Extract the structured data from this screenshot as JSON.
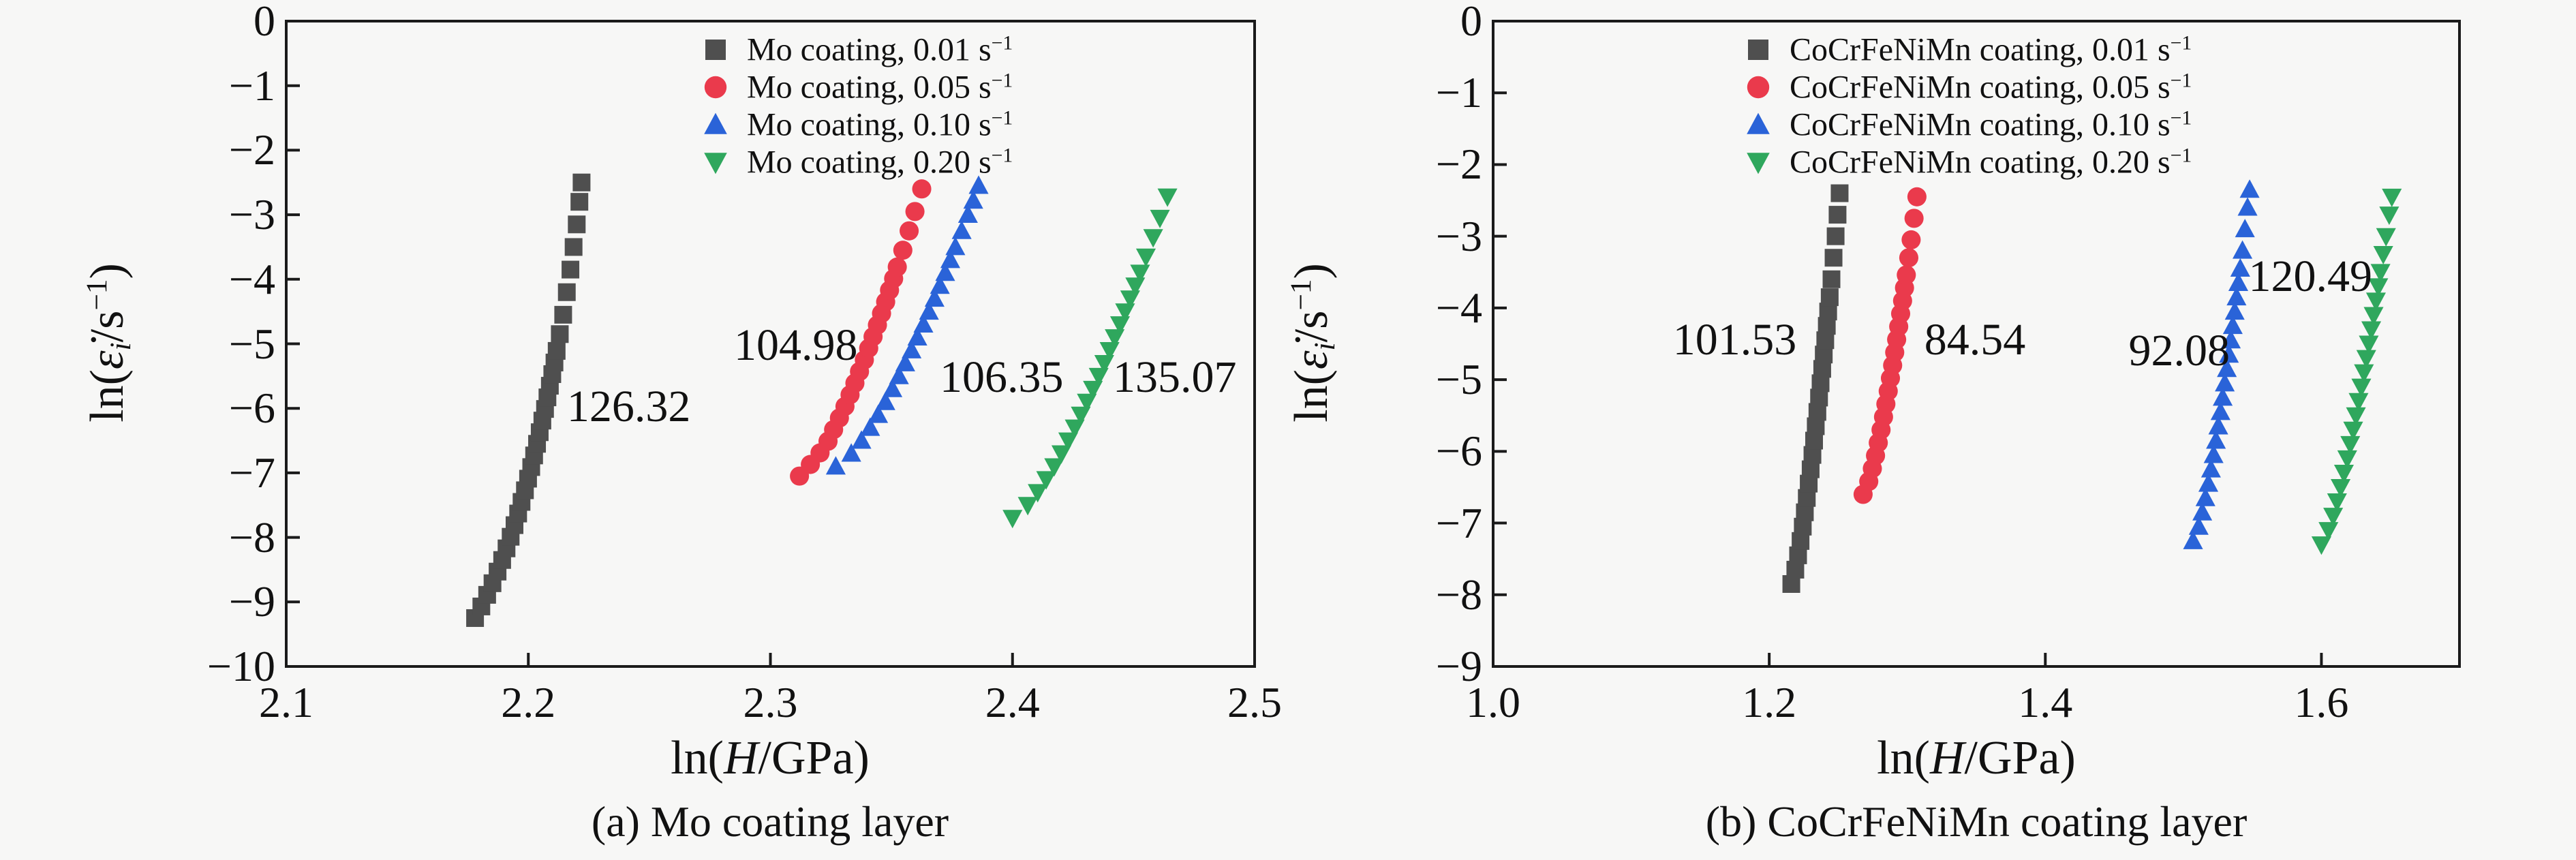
{
  "figure": {
    "background_color": "#f7f7f6",
    "frame_color": "#1a1a1a",
    "text_color": "#111111"
  },
  "chart_data": [
    {
      "id": "a",
      "type": "scatter",
      "caption": "(a) Mo coating layer",
      "xlabel_html": "ln(<i>H</i>/GPa)",
      "ylabel_html": "ln(<i>ε̇</i><sub><i>i</i></sub>/s<sup>−1</sup>)",
      "xlim": [
        2.1,
        2.5
      ],
      "ylim": [
        -10,
        0
      ],
      "grid": false,
      "legend_position": "upper-left-inside",
      "xticks": {
        "values": [
          2.1,
          2.2,
          2.3,
          2.4,
          2.5
        ],
        "labels": [
          "2.1",
          "2.2",
          "2.3",
          "2.4",
          "2.5"
        ]
      },
      "yticks": {
        "values": [
          0,
          -1,
          -2,
          -3,
          -4,
          -5,
          -6,
          -7,
          -8,
          -9,
          -10
        ],
        "labels": [
          "0",
          "−1",
          "−2",
          "−3",
          "−4",
          "−5",
          "−6",
          "−7",
          "−8",
          "−9",
          "−10"
        ]
      },
      "series": [
        {
          "name": "mo-0.01",
          "label_html": "Mo coating, 0.01 s<sup>−1</sup>",
          "marker": "square",
          "color": "#4f4f4f",
          "points": [
            [
              2.178,
              -9.25
            ],
            [
              2.1806,
              -9.07
            ],
            [
              2.183,
              -8.89
            ],
            [
              2.1852,
              -8.71
            ],
            [
              2.1873,
              -8.53
            ],
            [
              2.1892,
              -8.35
            ],
            [
              2.191,
              -8.17
            ],
            [
              2.1927,
              -7.99
            ],
            [
              2.1943,
              -7.81
            ],
            [
              2.1958,
              -7.63
            ],
            [
              2.1972,
              -7.45
            ],
            [
              2.1986,
              -7.27
            ],
            [
              2.1999,
              -7.09
            ],
            [
              2.2012,
              -6.91
            ],
            [
              2.2024,
              -6.73
            ],
            [
              2.2036,
              -6.55
            ],
            [
              2.2047,
              -6.37
            ],
            [
              2.2058,
              -6.19
            ],
            [
              2.2069,
              -6.01
            ],
            [
              2.2079,
              -5.83
            ],
            [
              2.2089,
              -5.65
            ],
            [
              2.2099,
              -5.47
            ],
            [
              2.2108,
              -5.29
            ],
            [
              2.2117,
              -5.11
            ],
            [
              2.213,
              -4.85
            ],
            [
              2.2144,
              -4.55
            ],
            [
              2.2159,
              -4.2
            ],
            [
              2.2174,
              -3.85
            ],
            [
              2.2187,
              -3.5
            ],
            [
              2.22,
              -3.15
            ],
            [
              2.2211,
              -2.8
            ],
            [
              2.222,
              -2.5
            ]
          ]
        },
        {
          "name": "mo-0.05",
          "label_html": "Mo coating, 0.05 s<sup>−1</sup>",
          "marker": "circle",
          "color": "#ea3a4c",
          "points": [
            [
              2.312,
              -7.05
            ],
            [
              2.3165,
              -6.87
            ],
            [
              2.3205,
              -6.69
            ],
            [
              2.3238,
              -6.51
            ],
            [
              2.3261,
              -6.33
            ],
            [
              2.3285,
              -6.15
            ],
            [
              2.3308,
              -5.97
            ],
            [
              2.3329,
              -5.79
            ],
            [
              2.3349,
              -5.61
            ],
            [
              2.3368,
              -5.43
            ],
            [
              2.3388,
              -5.25
            ],
            [
              2.3406,
              -5.07
            ],
            [
              2.3424,
              -4.89
            ],
            [
              2.3442,
              -4.71
            ],
            [
              2.3459,
              -4.53
            ],
            [
              2.3476,
              -4.35
            ],
            [
              2.3492,
              -4.17
            ],
            [
              2.3509,
              -3.99
            ],
            [
              2.3524,
              -3.81
            ],
            [
              2.3547,
              -3.55
            ],
            [
              2.3573,
              -3.25
            ],
            [
              2.3597,
              -2.95
            ],
            [
              2.3625,
              -2.6
            ]
          ]
        },
        {
          "name": "mo-0.10",
          "label_html": "Mo coating, 0.10 s<sup>−1</sup>",
          "marker": "triangle-up",
          "color": "#2a63d8",
          "points": [
            [
              2.327,
              -6.9
            ],
            [
              2.3334,
              -6.7
            ],
            [
              2.3376,
              -6.5
            ],
            [
              2.3412,
              -6.3
            ],
            [
              2.3445,
              -6.1
            ],
            [
              2.3475,
              -5.9
            ],
            [
              2.3504,
              -5.7
            ],
            [
              2.3531,
              -5.5
            ],
            [
              2.3557,
              -5.3
            ],
            [
              2.3583,
              -5.1
            ],
            [
              2.3607,
              -4.9
            ],
            [
              2.3632,
              -4.7
            ],
            [
              2.3655,
              -4.5
            ],
            [
              2.3678,
              -4.3
            ],
            [
              2.37,
              -4.1
            ],
            [
              2.3722,
              -3.9
            ],
            [
              2.3743,
              -3.7
            ],
            [
              2.3764,
              -3.5
            ],
            [
              2.379,
              -3.25
            ],
            [
              2.3816,
              -3.0
            ],
            [
              2.3838,
              -2.78
            ],
            [
              2.386,
              -2.55
            ]
          ]
        },
        {
          "name": "mo-0.20",
          "label_html": "Mo coating, 0.20 s<sup>−1</sup>",
          "marker": "triangle-down",
          "color": "#2fa75d",
          "points": [
            [
              2.4,
              -7.7
            ],
            [
              2.4063,
              -7.5
            ],
            [
              2.4104,
              -7.3
            ],
            [
              2.4139,
              -7.1
            ],
            [
              2.4172,
              -6.9
            ],
            [
              2.4202,
              -6.7
            ],
            [
              2.423,
              -6.5
            ],
            [
              2.4257,
              -6.3
            ],
            [
              2.4282,
              -6.1
            ],
            [
              2.4307,
              -5.9
            ],
            [
              2.4332,
              -5.7
            ],
            [
              2.4356,
              -5.5
            ],
            [
              2.4379,
              -5.3
            ],
            [
              2.4401,
              -5.1
            ],
            [
              2.4422,
              -4.9
            ],
            [
              2.4444,
              -4.7
            ],
            [
              2.4465,
              -4.5
            ],
            [
              2.4486,
              -4.3
            ],
            [
              2.4507,
              -4.1
            ],
            [
              2.4527,
              -3.9
            ],
            [
              2.4551,
              -3.65
            ],
            [
              2.4581,
              -3.35
            ],
            [
              2.4609,
              -3.05
            ],
            [
              2.464,
              -2.72
            ]
          ]
        }
      ],
      "annotations": [
        {
          "text": "126.32",
          "x": 2.2415,
          "y": -5.98
        },
        {
          "text": "104.98",
          "x": 2.3105,
          "y": -5.03
        },
        {
          "text": "106.35",
          "x": 2.3955,
          "y": -5.52
        },
        {
          "text": "135.07",
          "x": 2.467,
          "y": -5.52
        }
      ]
    },
    {
      "id": "b",
      "type": "scatter",
      "caption": "(b) CoCrFeNiMn coating layer",
      "xlabel_html": "ln(<i>H</i>/GPa)",
      "ylabel_html": "ln(<i>ε̇</i><sub><i>i</i></sub>/s<sup>−1</sup>)",
      "xlim": [
        1.0,
        1.7
      ],
      "ylim": [
        -9,
        0
      ],
      "grid": false,
      "legend_position": "upper-right-inside",
      "xticks": {
        "values": [
          1.0,
          1.2,
          1.4,
          1.6
        ],
        "labels": [
          "1.0",
          "1.2",
          "1.4",
          "1.6"
        ]
      },
      "yticks": {
        "values": [
          0,
          -1,
          -2,
          -3,
          -4,
          -5,
          -6,
          -7,
          -8,
          -9
        ],
        "labels": [
          "0",
          "−1",
          "−2",
          "−3",
          "−4",
          "−5",
          "−6",
          "−7",
          "−8",
          "−9"
        ]
      },
      "series": [
        {
          "name": "hea-0.01",
          "label_html": "CoCrFeNiMn coating, 0.01 s<sup>−1</sup>",
          "marker": "square",
          "color": "#4f4f4f",
          "points": [
            [
              1.216,
              -7.85
            ],
            [
              1.2189,
              -7.65
            ],
            [
              1.2209,
              -7.45
            ],
            [
              1.2227,
              -7.25
            ],
            [
              1.2243,
              -7.05
            ],
            [
              1.2258,
              -6.85
            ],
            [
              1.2272,
              -6.65
            ],
            [
              1.2286,
              -6.45
            ],
            [
              1.23,
              -6.25
            ],
            [
              1.2313,
              -6.05
            ],
            [
              1.2325,
              -5.85
            ],
            [
              1.2337,
              -5.65
            ],
            [
              1.2349,
              -5.45
            ],
            [
              1.2361,
              -5.25
            ],
            [
              1.2372,
              -5.05
            ],
            [
              1.2384,
              -4.85
            ],
            [
              1.2395,
              -4.65
            ],
            [
              1.2406,
              -4.45
            ],
            [
              1.2417,
              -4.25
            ],
            [
              1.2427,
              -4.05
            ],
            [
              1.2438,
              -3.85
            ],
            [
              1.2451,
              -3.6
            ],
            [
              1.2466,
              -3.3
            ],
            [
              1.2481,
              -3.0
            ],
            [
              1.2495,
              -2.7
            ],
            [
              1.251,
              -2.4
            ]
          ]
        },
        {
          "name": "hea-0.05",
          "label_html": "CoCrFeNiMn coating, 0.05 s<sup>−1</sup>",
          "marker": "circle",
          "color": "#ea3a4c",
          "points": [
            [
              1.268,
              -6.6
            ],
            [
              1.2721,
              -6.42
            ],
            [
              1.2747,
              -6.24
            ],
            [
              1.277,
              -6.06
            ],
            [
              1.279,
              -5.88
            ],
            [
              1.281,
              -5.7
            ],
            [
              1.2828,
              -5.52
            ],
            [
              1.2845,
              -5.34
            ],
            [
              1.2862,
              -5.16
            ],
            [
              1.2878,
              -4.98
            ],
            [
              1.2894,
              -4.8
            ],
            [
              1.2909,
              -4.62
            ],
            [
              1.2923,
              -4.44
            ],
            [
              1.2938,
              -4.26
            ],
            [
              1.2952,
              -4.08
            ],
            [
              1.2966,
              -3.9
            ],
            [
              1.298,
              -3.72
            ],
            [
              1.2993,
              -3.54
            ],
            [
              1.3011,
              -3.3
            ],
            [
              1.3028,
              -3.05
            ],
            [
              1.3049,
              -2.75
            ],
            [
              1.307,
              -2.45
            ]
          ]
        },
        {
          "name": "hea-0.10",
          "label_html": "CoCrFeNiMn coating, 0.10 s<sup>−1</sup>",
          "marker": "triangle-up",
          "color": "#2a63d8",
          "points": [
            [
              1.507,
              -7.25
            ],
            [
              1.5111,
              -7.05
            ],
            [
              1.5137,
              -6.85
            ],
            [
              1.516,
              -6.65
            ],
            [
              1.5181,
              -6.45
            ],
            [
              1.52,
              -6.25
            ],
            [
              1.5219,
              -6.05
            ],
            [
              1.5236,
              -5.85
            ],
            [
              1.5253,
              -5.65
            ],
            [
              1.5269,
              -5.45
            ],
            [
              1.5285,
              -5.25
            ],
            [
              1.53,
              -5.05
            ],
            [
              1.5315,
              -4.85
            ],
            [
              1.533,
              -4.65
            ],
            [
              1.5344,
              -4.45
            ],
            [
              1.5358,
              -4.25
            ],
            [
              1.5372,
              -4.05
            ],
            [
              1.5385,
              -3.85
            ],
            [
              1.5398,
              -3.65
            ],
            [
              1.5412,
              -3.45
            ],
            [
              1.5428,
              -3.2
            ],
            [
              1.5446,
              -2.9
            ],
            [
              1.5465,
              -2.6
            ],
            [
              1.548,
              -2.35
            ]
          ]
        },
        {
          "name": "hea-0.20",
          "label_html": "CoCrFeNiMn coating, 0.20 s<sup>−1</sup>",
          "marker": "triangle-down",
          "color": "#2fa75d",
          "points": [
            [
              1.6,
              -7.3
            ],
            [
              1.6051,
              -7.1
            ],
            [
              1.6085,
              -6.9
            ],
            [
              1.6113,
              -6.7
            ],
            [
              1.6139,
              -6.5
            ],
            [
              1.6163,
              -6.3
            ],
            [
              1.6187,
              -6.1
            ],
            [
              1.6209,
              -5.9
            ],
            [
              1.623,
              -5.7
            ],
            [
              1.625,
              -5.5
            ],
            [
              1.6269,
              -5.3
            ],
            [
              1.6289,
              -5.1
            ],
            [
              1.6308,
              -4.9
            ],
            [
              1.6325,
              -4.7
            ],
            [
              1.6343,
              -4.5
            ],
            [
              1.6361,
              -4.3
            ],
            [
              1.6378,
              -4.1
            ],
            [
              1.6395,
              -3.9
            ],
            [
              1.6412,
              -3.7
            ],
            [
              1.6428,
              -3.5
            ],
            [
              1.6448,
              -3.25
            ],
            [
              1.6468,
              -3.0
            ],
            [
              1.6491,
              -2.7
            ],
            [
              1.651,
              -2.45
            ]
          ]
        }
      ],
      "annotations": [
        {
          "text": "101.53",
          "x": 1.175,
          "y": -4.45
        },
        {
          "text": "84.54",
          "x": 1.349,
          "y": -4.45
        },
        {
          "text": "92.08",
          "x": 1.497,
          "y": -4.6
        },
        {
          "text": "120.49",
          "x": 1.592,
          "y": -3.56
        }
      ]
    }
  ]
}
